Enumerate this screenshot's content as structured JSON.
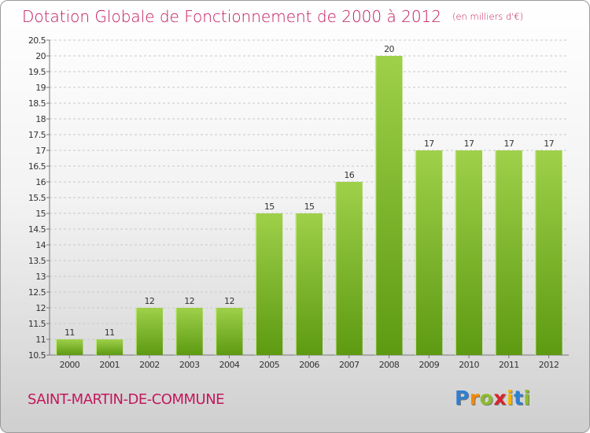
{
  "header": {
    "title": "Dotation Globale de Fonctionnement de 2000 à 2012",
    "unit": "(en milliers d'€)"
  },
  "footer": {
    "commune": "SAINT-MARTIN-DE-COMMUNE",
    "logo": [
      "P",
      "r",
      "o",
      "x",
      "i",
      "t",
      "i"
    ]
  },
  "colors": {
    "title": "#c2185b",
    "bar_light": "#9fd04a",
    "bar_dark": "#5d9a12",
    "logo_letters": [
      "#2f7fd0",
      "#f28a00",
      "#8cbc2a",
      "#d8222b",
      "#f5b400",
      "#2f7fd0",
      "#8cbc2a"
    ]
  },
  "chart_data": {
    "type": "bar",
    "categories": [
      "2000",
      "2001",
      "2002",
      "2003",
      "2004",
      "2005",
      "2006",
      "2007",
      "2008",
      "2009",
      "2010",
      "2011",
      "2012"
    ],
    "values": [
      11,
      11,
      12,
      12,
      12,
      15,
      15,
      16,
      20,
      17,
      17,
      17,
      17
    ],
    "ylim": [
      10.5,
      20.5
    ],
    "yticks": [
      "10.5",
      "11",
      "11.5",
      "12",
      "12.5",
      "13",
      "13.5",
      "14",
      "14.5",
      "15",
      "15.5",
      "16",
      "16.5",
      "17",
      "17.5",
      "18",
      "18.5",
      "19",
      "19.5",
      "20",
      "20.5"
    ],
    "grid": "horizontal dashed",
    "legend": "none"
  }
}
